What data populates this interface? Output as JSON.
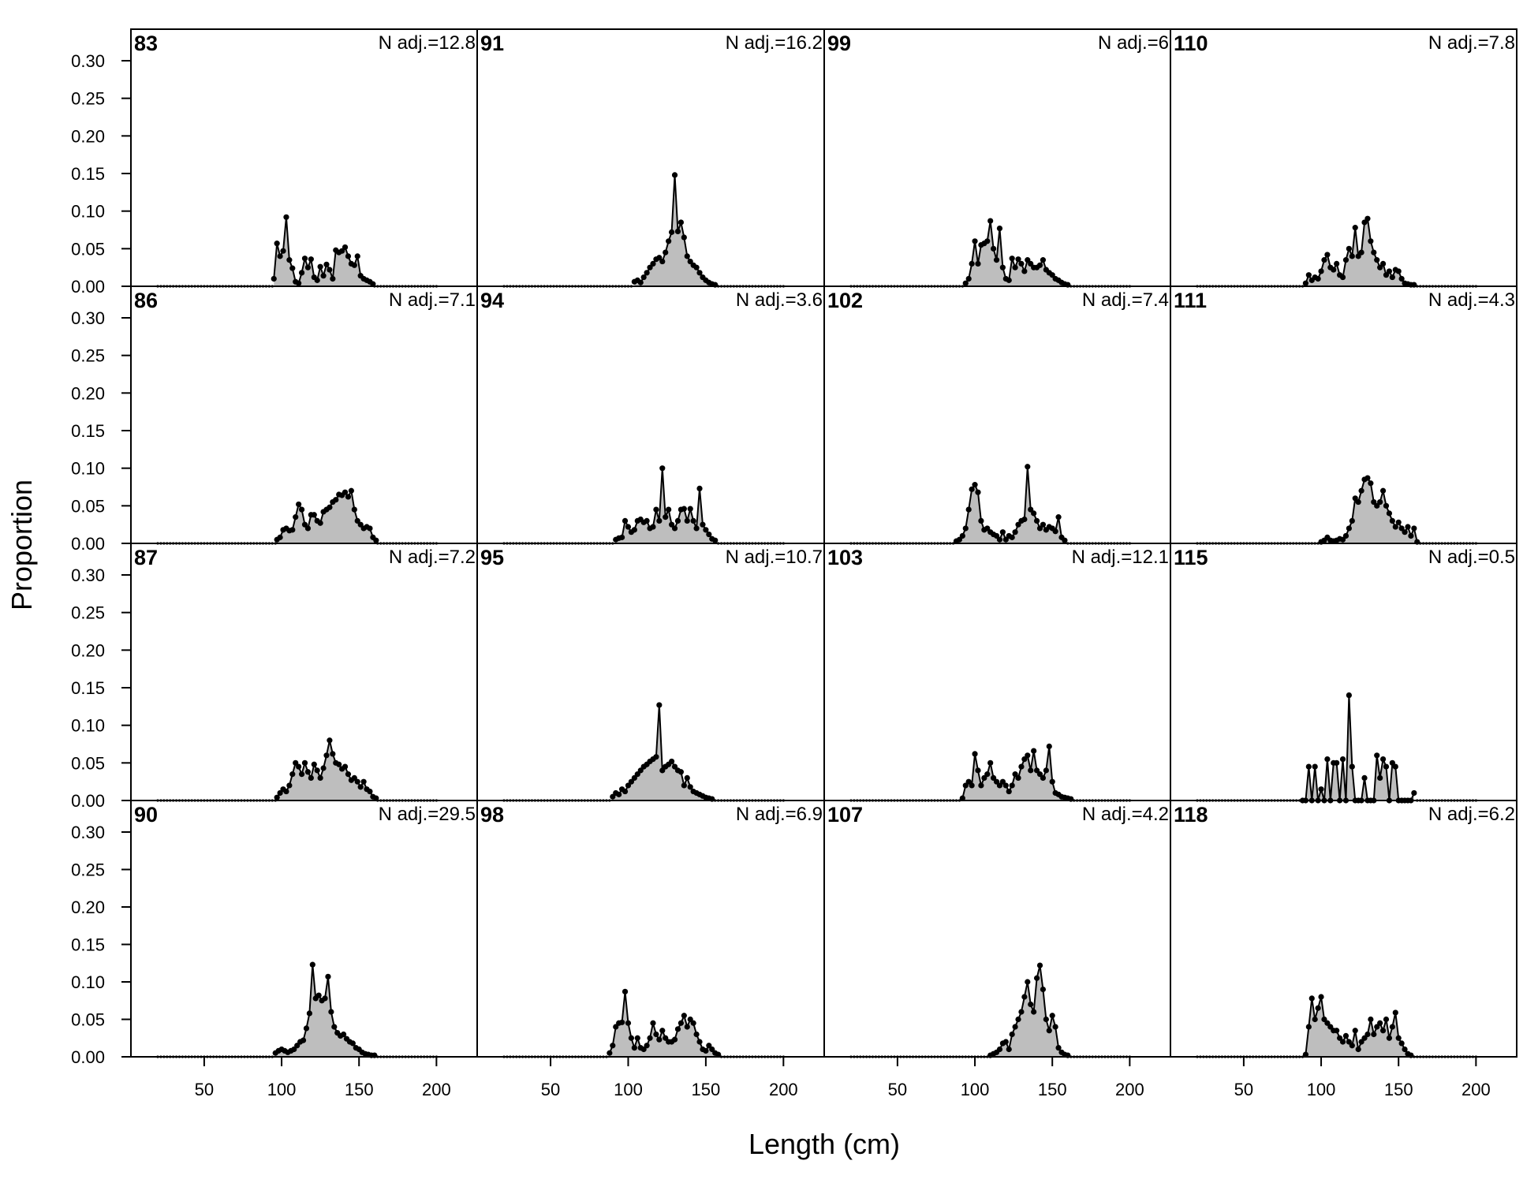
{
  "chart_data": {
    "type": "area",
    "xlabel": "Length (cm)",
    "ylabel": "Proportion",
    "xlim": [
      20,
      210
    ],
    "ylim": [
      0,
      0.33
    ],
    "x_ticks": [
      50,
      100,
      150,
      200
    ],
    "y_ticks": [
      0.0,
      0.05,
      0.1,
      0.15,
      0.2,
      0.25,
      0.3
    ],
    "y_tick_labels": [
      "0.00",
      "0.05",
      "0.10",
      "0.15",
      "0.20",
      "0.25",
      "0.30"
    ],
    "grid": false,
    "layout": "4x4 panels, column-major",
    "fill_color": "#bebebe",
    "line_color": "#000000",
    "panels": [
      {
        "year": "83",
        "n_label": "N adj.=12.8",
        "x": [
          95,
          97,
          99,
          101,
          103,
          105,
          107,
          109,
          111,
          113,
          115,
          117,
          119,
          121,
          123,
          125,
          127,
          129,
          131,
          133,
          135,
          137,
          139,
          141,
          143,
          145,
          147,
          149,
          151,
          153,
          155,
          157,
          159
        ],
        "y": [
          0.01,
          0.057,
          0.04,
          0.047,
          0.092,
          0.035,
          0.024,
          0.006,
          0.004,
          0.018,
          0.037,
          0.025,
          0.036,
          0.012,
          0.008,
          0.026,
          0.014,
          0.029,
          0.022,
          0.01,
          0.048,
          0.045,
          0.047,
          0.052,
          0.04,
          0.03,
          0.028,
          0.04,
          0.014,
          0.01,
          0.008,
          0.006,
          0.003
        ]
      },
      {
        "year": "86",
        "n_label": "N adj.=7.1",
        "x": [
          97,
          99,
          101,
          103,
          105,
          107,
          109,
          111,
          113,
          115,
          117,
          119,
          121,
          123,
          125,
          127,
          129,
          131,
          133,
          135,
          137,
          139,
          141,
          143,
          145,
          147,
          149,
          151,
          153,
          155,
          157,
          159,
          161
        ],
        "y": [
          0.005,
          0.008,
          0.018,
          0.02,
          0.017,
          0.018,
          0.035,
          0.052,
          0.045,
          0.025,
          0.02,
          0.038,
          0.038,
          0.03,
          0.027,
          0.042,
          0.045,
          0.048,
          0.055,
          0.058,
          0.065,
          0.064,
          0.068,
          0.062,
          0.07,
          0.045,
          0.03,
          0.025,
          0.02,
          0.022,
          0.02,
          0.008,
          0.004
        ]
      },
      {
        "year": "87",
        "n_label": "N adj.=7.2",
        "x": [
          97,
          99,
          101,
          103,
          105,
          107,
          109,
          111,
          113,
          115,
          117,
          119,
          121,
          123,
          125,
          127,
          129,
          131,
          133,
          135,
          137,
          139,
          141,
          143,
          145,
          147,
          149,
          151,
          153,
          155,
          157,
          159,
          161
        ],
        "y": [
          0.004,
          0.01,
          0.015,
          0.012,
          0.02,
          0.035,
          0.05,
          0.045,
          0.035,
          0.05,
          0.038,
          0.03,
          0.048,
          0.04,
          0.03,
          0.043,
          0.06,
          0.08,
          0.062,
          0.05,
          0.048,
          0.042,
          0.045,
          0.035,
          0.027,
          0.03,
          0.025,
          0.018,
          0.025,
          0.015,
          0.012,
          0.005,
          0.003
        ]
      },
      {
        "year": "90",
        "n_label": "N adj.=29.5",
        "x": [
          96,
          98,
          100,
          102,
          104,
          106,
          108,
          110,
          112,
          114,
          116,
          118,
          120,
          122,
          124,
          126,
          128,
          130,
          132,
          134,
          136,
          138,
          140,
          142,
          144,
          146,
          148,
          150,
          152,
          154,
          156,
          158,
          160
        ],
        "y": [
          0.005,
          0.008,
          0.01,
          0.008,
          0.006,
          0.008,
          0.01,
          0.015,
          0.02,
          0.022,
          0.038,
          0.058,
          0.123,
          0.078,
          0.082,
          0.075,
          0.078,
          0.107,
          0.06,
          0.04,
          0.032,
          0.028,
          0.03,
          0.024,
          0.02,
          0.018,
          0.012,
          0.01,
          0.006,
          0.004,
          0.003,
          0.002,
          0.002
        ]
      },
      {
        "year": "91",
        "n_label": "N adj.=16.2",
        "x": [
          104,
          106,
          108,
          110,
          112,
          114,
          116,
          118,
          120,
          122,
          124,
          126,
          128,
          130,
          132,
          134,
          136,
          138,
          140,
          142,
          144,
          146,
          148,
          150,
          152,
          154,
          156
        ],
        "y": [
          0.006,
          0.008,
          0.005,
          0.012,
          0.018,
          0.025,
          0.03,
          0.036,
          0.038,
          0.033,
          0.045,
          0.06,
          0.072,
          0.148,
          0.073,
          0.085,
          0.065,
          0.04,
          0.033,
          0.028,
          0.025,
          0.018,
          0.012,
          0.008,
          0.005,
          0.003,
          0.002
        ]
      },
      {
        "year": "94",
        "n_label": "N adj.=3.6",
        "x": [
          92,
          94,
          96,
          98,
          100,
          102,
          104,
          106,
          108,
          110,
          112,
          114,
          116,
          118,
          120,
          122,
          124,
          126,
          128,
          130,
          132,
          134,
          136,
          138,
          140,
          142,
          144,
          146,
          148,
          150,
          152,
          154,
          156
        ],
        "y": [
          0.005,
          0.007,
          0.008,
          0.03,
          0.022,
          0.015,
          0.018,
          0.03,
          0.032,
          0.028,
          0.03,
          0.02,
          0.022,
          0.045,
          0.03,
          0.1,
          0.035,
          0.045,
          0.025,
          0.02,
          0.03,
          0.045,
          0.046,
          0.03,
          0.046,
          0.03,
          0.02,
          0.073,
          0.025,
          0.018,
          0.012,
          0.006,
          0.004
        ]
      },
      {
        "year": "95",
        "n_label": "N adj.=10.7",
        "x": [
          90,
          92,
          94,
          96,
          98,
          100,
          102,
          104,
          106,
          108,
          110,
          112,
          114,
          116,
          118,
          120,
          122,
          124,
          126,
          128,
          130,
          132,
          134,
          136,
          138,
          140,
          142,
          144,
          146,
          148,
          150,
          152,
          154
        ],
        "y": [
          0.005,
          0.01,
          0.008,
          0.015,
          0.012,
          0.02,
          0.025,
          0.03,
          0.035,
          0.04,
          0.045,
          0.048,
          0.052,
          0.055,
          0.058,
          0.127,
          0.04,
          0.045,
          0.048,
          0.052,
          0.045,
          0.04,
          0.038,
          0.02,
          0.03,
          0.018,
          0.012,
          0.01,
          0.008,
          0.006,
          0.004,
          0.003,
          0.002
        ]
      },
      {
        "year": "98",
        "n_label": "N adj.=6.9",
        "x": [
          88,
          90,
          92,
          94,
          96,
          98,
          100,
          102,
          104,
          106,
          108,
          110,
          112,
          114,
          116,
          118,
          120,
          122,
          124,
          126,
          128,
          130,
          132,
          134,
          136,
          138,
          140,
          142,
          144,
          146,
          148,
          150,
          152,
          154,
          156,
          158
        ],
        "y": [
          0.005,
          0.015,
          0.04,
          0.045,
          0.046,
          0.087,
          0.045,
          0.025,
          0.012,
          0.025,
          0.012,
          0.01,
          0.015,
          0.025,
          0.045,
          0.03,
          0.023,
          0.035,
          0.025,
          0.02,
          0.02,
          0.023,
          0.037,
          0.045,
          0.055,
          0.04,
          0.05,
          0.045,
          0.03,
          0.02,
          0.01,
          0.008,
          0.015,
          0.01,
          0.005,
          0.003
        ]
      },
      {
        "year": "99",
        "n_label": "N adj.=6",
        "x": [
          94,
          96,
          98,
          100,
          102,
          104,
          106,
          108,
          110,
          112,
          114,
          116,
          118,
          120,
          122,
          124,
          126,
          128,
          130,
          132,
          134,
          136,
          138,
          140,
          142,
          144,
          146,
          148,
          150,
          152,
          154,
          156,
          158,
          160
        ],
        "y": [
          0.004,
          0.01,
          0.03,
          0.06,
          0.03,
          0.055,
          0.057,
          0.06,
          0.087,
          0.05,
          0.035,
          0.077,
          0.025,
          0.01,
          0.008,
          0.037,
          0.025,
          0.036,
          0.03,
          0.02,
          0.035,
          0.03,
          0.025,
          0.025,
          0.028,
          0.035,
          0.022,
          0.018,
          0.015,
          0.01,
          0.008,
          0.005,
          0.003,
          0.002
        ]
      },
      {
        "year": "102",
        "n_label": "N adj.=7.4",
        "x": [
          88,
          90,
          92,
          94,
          96,
          98,
          100,
          102,
          104,
          106,
          108,
          110,
          112,
          114,
          116,
          118,
          120,
          122,
          124,
          126,
          128,
          130,
          132,
          134,
          136,
          138,
          140,
          142,
          144,
          146,
          148,
          150,
          152,
          154,
          156,
          158
        ],
        "y": [
          0.003,
          0.005,
          0.01,
          0.02,
          0.045,
          0.072,
          0.078,
          0.068,
          0.03,
          0.018,
          0.02,
          0.015,
          0.012,
          0.01,
          0.005,
          0.015,
          0.005,
          0.01,
          0.008,
          0.015,
          0.025,
          0.03,
          0.032,
          0.102,
          0.045,
          0.04,
          0.03,
          0.02,
          0.025,
          0.018,
          0.022,
          0.02,
          0.016,
          0.035,
          0.008,
          0.004
        ]
      },
      {
        "year": "103",
        "n_label": "N adj.=12.1",
        "x": [
          92,
          94,
          96,
          98,
          100,
          102,
          104,
          106,
          108,
          110,
          112,
          114,
          116,
          118,
          120,
          122,
          124,
          126,
          128,
          130,
          132,
          134,
          136,
          138,
          140,
          142,
          144,
          146,
          148,
          150,
          152,
          154,
          156,
          158,
          160,
          162
        ],
        "y": [
          0.003,
          0.02,
          0.025,
          0.02,
          0.062,
          0.04,
          0.02,
          0.03,
          0.035,
          0.05,
          0.03,
          0.025,
          0.02,
          0.025,
          0.02,
          0.012,
          0.02,
          0.035,
          0.03,
          0.045,
          0.055,
          0.06,
          0.04,
          0.066,
          0.04,
          0.035,
          0.03,
          0.04,
          0.072,
          0.025,
          0.01,
          0.008,
          0.005,
          0.004,
          0.003,
          0.002
        ]
      },
      {
        "year": "107",
        "n_label": "N adj.=4.2",
        "x": [
          110,
          112,
          114,
          116,
          118,
          120,
          122,
          124,
          126,
          128,
          130,
          132,
          134,
          136,
          138,
          140,
          142,
          144,
          146,
          148,
          150,
          152,
          154,
          156,
          158,
          160
        ],
        "y": [
          0.002,
          0.004,
          0.006,
          0.01,
          0.018,
          0.02,
          0.01,
          0.03,
          0.04,
          0.05,
          0.06,
          0.08,
          0.1,
          0.07,
          0.06,
          0.105,
          0.122,
          0.09,
          0.05,
          0.035,
          0.055,
          0.04,
          0.012,
          0.006,
          0.003,
          0.002
        ]
      },
      {
        "year": "110",
        "n_label": "N adj.=7.8",
        "x": [
          90,
          92,
          94,
          96,
          98,
          100,
          102,
          104,
          106,
          108,
          110,
          112,
          114,
          116,
          118,
          120,
          122,
          124,
          126,
          128,
          130,
          132,
          134,
          136,
          138,
          140,
          142,
          144,
          146,
          148,
          150,
          152,
          154,
          156,
          158,
          160
        ],
        "y": [
          0.004,
          0.015,
          0.008,
          0.012,
          0.01,
          0.02,
          0.035,
          0.042,
          0.025,
          0.022,
          0.03,
          0.015,
          0.012,
          0.035,
          0.05,
          0.04,
          0.078,
          0.04,
          0.045,
          0.085,
          0.09,
          0.06,
          0.045,
          0.035,
          0.025,
          0.03,
          0.015,
          0.02,
          0.012,
          0.022,
          0.02,
          0.01,
          0.004,
          0.003,
          0.002,
          0.002
        ]
      },
      {
        "year": "111",
        "n_label": "N adj.=4.3",
        "x": [
          100,
          102,
          104,
          106,
          108,
          110,
          112,
          114,
          116,
          118,
          120,
          122,
          124,
          126,
          128,
          130,
          132,
          134,
          136,
          138,
          140,
          142,
          144,
          146,
          148,
          150,
          152,
          154,
          156,
          158,
          160,
          162
        ],
        "y": [
          0.002,
          0.004,
          0.008,
          0.004,
          0.003,
          0.004,
          0.006,
          0.005,
          0.01,
          0.02,
          0.03,
          0.06,
          0.055,
          0.07,
          0.085,
          0.087,
          0.08,
          0.055,
          0.05,
          0.055,
          0.07,
          0.05,
          0.04,
          0.03,
          0.022,
          0.028,
          0.02,
          0.015,
          0.022,
          0.01,
          0.02,
          0.002
        ]
      },
      {
        "year": "115",
        "n_label": "N adj.=0.5",
        "x": [
          88,
          90,
          92,
          94,
          96,
          98,
          100,
          102,
          104,
          106,
          108,
          110,
          112,
          114,
          116,
          118,
          120,
          122,
          124,
          126,
          128,
          130,
          132,
          134,
          136,
          138,
          140,
          142,
          144,
          146,
          148,
          150,
          152,
          154,
          156,
          158,
          160
        ],
        "y": [
          0.0,
          0.0,
          0.045,
          0.0,
          0.045,
          0.0,
          0.015,
          0.0,
          0.055,
          0.0,
          0.05,
          0.05,
          0.0,
          0.055,
          0.0,
          0.14,
          0.045,
          0.0,
          0.0,
          0.0,
          0.03,
          0.0,
          0.0,
          0.0,
          0.06,
          0.03,
          0.055,
          0.045,
          0.0,
          0.05,
          0.045,
          0.0,
          0.0,
          0.0,
          0.0,
          0.0,
          0.01
        ]
      },
      {
        "year": "118",
        "n_label": "N adj.=6.2",
        "x": [
          90,
          92,
          94,
          96,
          98,
          100,
          102,
          104,
          106,
          108,
          110,
          112,
          114,
          116,
          118,
          120,
          122,
          124,
          126,
          128,
          130,
          132,
          134,
          136,
          138,
          140,
          142,
          144,
          146,
          148,
          150,
          152,
          154,
          156,
          158
        ],
        "y": [
          0.003,
          0.04,
          0.078,
          0.05,
          0.065,
          0.08,
          0.05,
          0.045,
          0.04,
          0.035,
          0.035,
          0.025,
          0.02,
          0.028,
          0.02,
          0.015,
          0.035,
          0.01,
          0.02,
          0.025,
          0.03,
          0.05,
          0.03,
          0.04,
          0.045,
          0.035,
          0.05,
          0.025,
          0.04,
          0.059,
          0.025,
          0.018,
          0.01,
          0.004,
          0.002
        ]
      }
    ]
  }
}
